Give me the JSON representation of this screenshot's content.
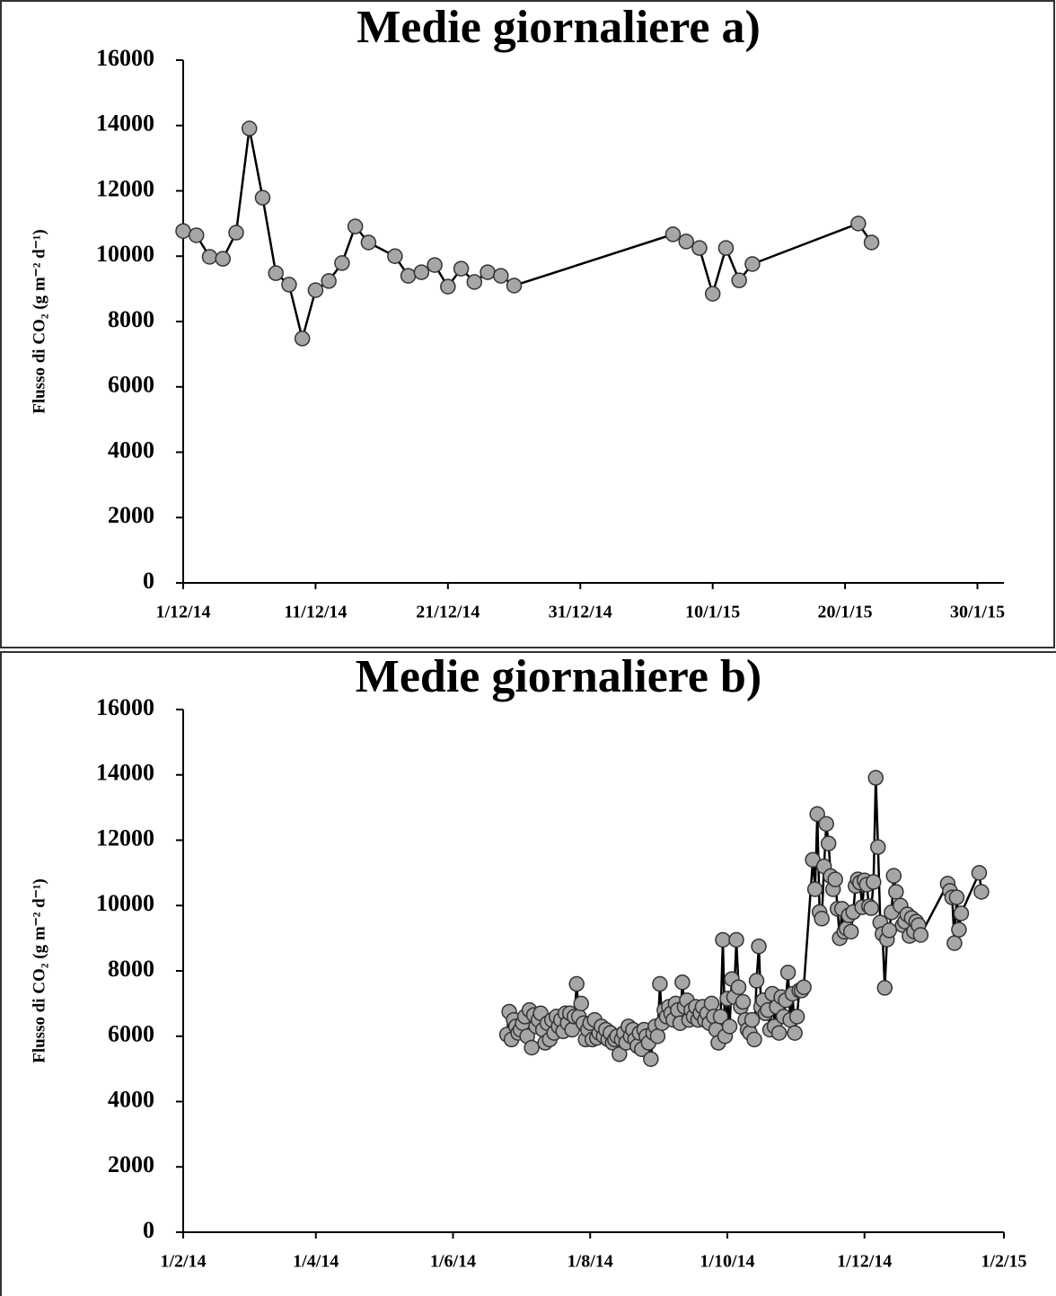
{
  "chart_data": [
    {
      "type": "line",
      "title": "Medie giornaliere a)",
      "y_label": "Flusso di CO₂ (g m⁻² d⁻¹)",
      "x": [
        "2014-12-01",
        "2014-12-02",
        "2014-12-03",
        "2014-12-04",
        "2014-12-05",
        "2014-12-06",
        "2014-12-07",
        "2014-12-08",
        "2014-12-09",
        "2014-12-10",
        "2014-12-11",
        "2014-12-12",
        "2014-12-13",
        "2014-12-14",
        "2014-12-15",
        "2014-12-17",
        "2014-12-18",
        "2014-12-19",
        "2014-12-20",
        "2014-12-21",
        "2014-12-22",
        "2014-12-23",
        "2014-12-24",
        "2014-12-25",
        "2014-12-26",
        "2015-01-07",
        "2015-01-08",
        "2015-01-09",
        "2015-01-10",
        "2015-01-11",
        "2015-01-12",
        "2015-01-13",
        "2015-01-21",
        "2015-01-22"
      ],
      "values": [
        10770,
        10640,
        9980,
        9920,
        10720,
        13910,
        11790,
        9480,
        9130,
        7480,
        8960,
        9240,
        9790,
        10910,
        10420,
        10000,
        9400,
        9510,
        9730,
        9070,
        9620,
        9210,
        9510,
        9400,
        9100,
        10670,
        10450,
        10250,
        8850,
        10250,
        9260,
        9760,
        11000,
        10420
      ],
      "line_color": "#000000",
      "marker_color": "#a6a6a6",
      "xlim": [
        "2014-12-01",
        "2015-02-01"
      ],
      "xticks": [
        {
          "value": "2014-12-01",
          "label": "1/12/14"
        },
        {
          "value": "2014-12-11",
          "label": "11/12/14"
        },
        {
          "value": "2014-12-21",
          "label": "21/12/14"
        },
        {
          "value": "2014-12-31",
          "label": "31/12/14"
        },
        {
          "value": "2015-01-10",
          "label": "10/1/15"
        },
        {
          "value": "2015-01-20",
          "label": "20/1/15"
        },
        {
          "value": "2015-01-30",
          "label": "30/1/15"
        }
      ],
      "ylim": [
        0,
        16000
      ],
      "yticks": [
        0,
        2000,
        4000,
        6000,
        8000,
        10000,
        12000,
        14000,
        16000
      ]
    },
    {
      "type": "line",
      "title": "Medie giornaliere b)",
      "y_label": "Flusso di CO₂ (g m⁻² d⁻¹)",
      "x": [
        "2014-06-25",
        "2014-06-26",
        "2014-06-27",
        "2014-06-28",
        "2014-06-29",
        "2014-06-30",
        "2014-07-01",
        "2014-07-02",
        "2014-07-03",
        "2014-07-04",
        "2014-07-05",
        "2014-07-06",
        "2014-07-07",
        "2014-07-08",
        "2014-07-09",
        "2014-07-10",
        "2014-07-11",
        "2014-07-12",
        "2014-07-13",
        "2014-07-14",
        "2014-07-15",
        "2014-07-16",
        "2014-07-17",
        "2014-07-18",
        "2014-07-19",
        "2014-07-20",
        "2014-07-21",
        "2014-07-22",
        "2014-07-23",
        "2014-07-24",
        "2014-07-25",
        "2014-07-26",
        "2014-07-27",
        "2014-07-28",
        "2014-07-29",
        "2014-07-30",
        "2014-07-31",
        "2014-08-01",
        "2014-08-02",
        "2014-08-03",
        "2014-08-04",
        "2014-08-05",
        "2014-08-06",
        "2014-08-07",
        "2014-08-08",
        "2014-08-09",
        "2014-08-10",
        "2014-08-11",
        "2014-08-12",
        "2014-08-13",
        "2014-08-14",
        "2014-08-15",
        "2014-08-16",
        "2014-08-17",
        "2014-08-18",
        "2014-08-19",
        "2014-08-20",
        "2014-08-21",
        "2014-08-22",
        "2014-08-23",
        "2014-08-24",
        "2014-08-25",
        "2014-08-26",
        "2014-08-27",
        "2014-08-28",
        "2014-08-29",
        "2014-08-30",
        "2014-08-31",
        "2014-09-01",
        "2014-09-02",
        "2014-09-03",
        "2014-09-04",
        "2014-09-05",
        "2014-09-06",
        "2014-09-07",
        "2014-09-08",
        "2014-09-09",
        "2014-09-10",
        "2014-09-11",
        "2014-09-12",
        "2014-09-13",
        "2014-09-14",
        "2014-09-15",
        "2014-09-16",
        "2014-09-17",
        "2014-09-18",
        "2014-09-19",
        "2014-09-20",
        "2014-09-21",
        "2014-09-22",
        "2014-09-23",
        "2014-09-24",
        "2014-09-25",
        "2014-09-26",
        "2014-09-27",
        "2014-09-28",
        "2014-09-29",
        "2014-09-30",
        "2014-10-01",
        "2014-10-02",
        "2014-10-03",
        "2014-10-04",
        "2014-10-05",
        "2014-10-06",
        "2014-10-07",
        "2014-10-08",
        "2014-10-09",
        "2014-10-10",
        "2014-10-11",
        "2014-10-12",
        "2014-10-13",
        "2014-10-14",
        "2014-10-15",
        "2014-10-16",
        "2014-10-17",
        "2014-10-18",
        "2014-10-19",
        "2014-10-20",
        "2014-10-21",
        "2014-10-22",
        "2014-10-23",
        "2014-10-24",
        "2014-10-25",
        "2014-10-26",
        "2014-10-27",
        "2014-10-28",
        "2014-10-29",
        "2014-10-30",
        "2014-10-31",
        "2014-11-01",
        "2014-11-02",
        "2014-11-03",
        "2014-11-04",
        "2014-11-08",
        "2014-11-09",
        "2014-11-10",
        "2014-11-11",
        "2014-11-12",
        "2014-11-13",
        "2014-11-14",
        "2014-11-15",
        "2014-11-16",
        "2014-11-17",
        "2014-11-18",
        "2014-11-19",
        "2014-11-20",
        "2014-11-21",
        "2014-11-22",
        "2014-11-23",
        "2014-11-24",
        "2014-11-25",
        "2014-11-26",
        "2014-11-27",
        "2014-11-28",
        "2014-11-29",
        "2014-11-30",
        "2014-12-01",
        "2014-12-02",
        "2014-12-03",
        "2014-12-04",
        "2014-12-05",
        "2014-12-06",
        "2014-12-07",
        "2014-12-08",
        "2014-12-09",
        "2014-12-10",
        "2014-12-11",
        "2014-12-12",
        "2014-12-13",
        "2014-12-14",
        "2014-12-15",
        "2014-12-17",
        "2014-12-18",
        "2014-12-19",
        "2014-12-20",
        "2014-12-21",
        "2014-12-22",
        "2014-12-23",
        "2014-12-24",
        "2014-12-25",
        "2014-12-26",
        "2015-01-07",
        "2015-01-08",
        "2015-01-09",
        "2015-01-10",
        "2015-01-11",
        "2015-01-12",
        "2015-01-13",
        "2015-01-21",
        "2015-01-22"
      ],
      "values": [
        6050,
        6750,
        5900,
        6500,
        6300,
        6100,
        6200,
        6400,
        6600,
        6000,
        6800,
        5650,
        6650,
        6300,
        6500,
        6700,
        6200,
        5800,
        6400,
        5900,
        6500,
        6100,
        6600,
        6300,
        6500,
        6150,
        6700,
        6400,
        6700,
        6200,
        6600,
        7600,
        6600,
        7000,
        6400,
        5900,
        6200,
        6400,
        5900,
        6500,
        5950,
        6100,
        6300,
        6000,
        6200,
        5900,
        6100,
        5800,
        5900,
        6000,
        5450,
        5900,
        6100,
        5800,
        6300,
        6000,
        6200,
        5900,
        5700,
        6100,
        5600,
        6200,
        6000,
        5800,
        5300,
        6100,
        6300,
        6000,
        7600,
        6400,
        6800,
        6600,
        6900,
        6700,
        6500,
        7000,
        6800,
        6400,
        7650,
        6900,
        7100,
        6500,
        6800,
        6600,
        6900,
        6500,
        6700,
        6900,
        6500,
        6700,
        6400,
        7000,
        6600,
        6200,
        5800,
        6600,
        8950,
        6000,
        7150,
        6300,
        7750,
        7200,
        8950,
        7500,
        6900,
        7050,
        6500,
        6200,
        6100,
        6500,
        5900,
        7700,
        8750,
        6900,
        7100,
        6700,
        6800,
        6200,
        7300,
        6300,
        6900,
        6100,
        7200,
        6600,
        7100,
        7950,
        6500,
        7300,
        6100,
        6600,
        7400,
        7400,
        7500,
        11400,
        10500,
        12800,
        9800,
        9600,
        11200,
        12500,
        11900,
        10900,
        10500,
        10800,
        9900,
        9000,
        9900,
        9200,
        9300,
        9700,
        9200,
        9800,
        10600,
        10800,
        10700,
        9950,
        10770,
        10640,
        9980,
        9920,
        10720,
        13910,
        11790,
        9480,
        9130,
        7480,
        8960,
        9240,
        9790,
        10910,
        10420,
        10000,
        9400,
        9510,
        9730,
        9070,
        9620,
        9210,
        9510,
        9400,
        9100,
        10670,
        10450,
        10250,
        8850,
        10250,
        9260,
        9760,
        11000,
        10420
      ],
      "line_color": "#000000",
      "marker_color": "#a6a6a6",
      "xlim": [
        "2014-02-01",
        "2015-02-01"
      ],
      "xticks": [
        {
          "value": "2014-02-01",
          "label": "1/2/14"
        },
        {
          "value": "2014-04-01",
          "label": "1/4/14"
        },
        {
          "value": "2014-06-01",
          "label": "1/6/14"
        },
        {
          "value": "2014-08-01",
          "label": "1/8/14"
        },
        {
          "value": "2014-10-01",
          "label": "1/10/14"
        },
        {
          "value": "2014-12-01",
          "label": "1/12/14"
        },
        {
          "value": "2015-02-01",
          "label": "1/2/15"
        }
      ],
      "ylim": [
        0,
        16000
      ],
      "yticks": [
        0,
        2000,
        4000,
        6000,
        8000,
        10000,
        12000,
        14000,
        16000
      ]
    }
  ]
}
